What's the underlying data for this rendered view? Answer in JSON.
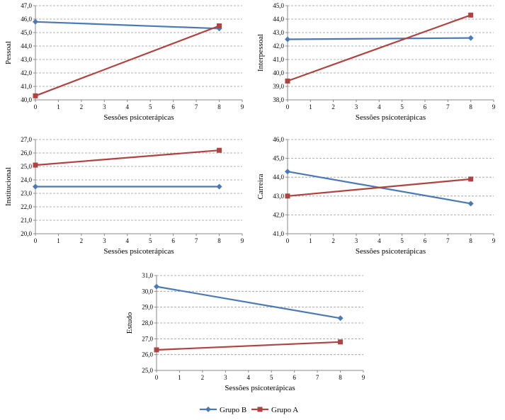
{
  "colors": {
    "grupo_b": "#4a7ab5",
    "grupo_a": "#b0433f",
    "grid": "#999999",
    "axis": "#888888"
  },
  "legend": [
    {
      "name": "Grupo B",
      "color": "#4a7ab5",
      "marker": "diamond"
    },
    {
      "name": "Grupo A",
      "color": "#b0433f",
      "marker": "square"
    }
  ],
  "chart_data": [
    {
      "type": "line",
      "ylabel": "Pessoal",
      "xlabel": "Sessões psicoterápicas",
      "xlim": [
        0,
        9
      ],
      "xticks": [
        "0",
        "1",
        "2",
        "3",
        "4",
        "5",
        "6",
        "7",
        "8",
        "9"
      ],
      "ylim": [
        40.0,
        47.0
      ],
      "yticks": [
        "40,0",
        "41,0",
        "42,0",
        "43,0",
        "44,0",
        "45,0",
        "46,0",
        "47,0"
      ],
      "grid": "horizontal dashed",
      "series": [
        {
          "name": "Grupo B",
          "x": [
            0,
            8
          ],
          "y": [
            45.8,
            45.3
          ]
        },
        {
          "name": "Grupo A",
          "x": [
            0,
            8
          ],
          "y": [
            40.3,
            45.5
          ]
        }
      ]
    },
    {
      "type": "line",
      "ylabel": "Interpessoal",
      "xlabel": "Sessões psicoterápicas",
      "xlim": [
        0,
        9
      ],
      "xticks": [
        "0",
        "1",
        "2",
        "3",
        "4",
        "5",
        "6",
        "7",
        "8",
        "9"
      ],
      "ylim": [
        38.0,
        45.0
      ],
      "yticks": [
        "38,0",
        "39,0",
        "40,0",
        "41,0",
        "42,0",
        "43,0",
        "44,0",
        "45,0"
      ],
      "grid": "horizontal dashed",
      "series": [
        {
          "name": "Grupo B",
          "x": [
            0,
            8
          ],
          "y": [
            42.5,
            42.6
          ]
        },
        {
          "name": "Grupo A",
          "x": [
            0,
            8
          ],
          "y": [
            39.4,
            44.3
          ]
        }
      ]
    },
    {
      "type": "line",
      "ylabel": "Institucional",
      "xlabel": "Sessões psicoterápicas",
      "xlim": [
        0,
        9
      ],
      "xticks": [
        "0",
        "1",
        "2",
        "3",
        "4",
        "5",
        "6",
        "7",
        "8",
        "9"
      ],
      "ylim": [
        20.0,
        27.0
      ],
      "yticks": [
        "20,0",
        "21,0",
        "22,0",
        "23,0",
        "24,0",
        "25,0",
        "26,0",
        "27,0"
      ],
      "grid": "horizontal dashed",
      "series": [
        {
          "name": "Grupo B",
          "x": [
            0,
            8
          ],
          "y": [
            23.5,
            23.5
          ]
        },
        {
          "name": "Grupo A",
          "x": [
            0,
            8
          ],
          "y": [
            25.1,
            26.2
          ]
        }
      ]
    },
    {
      "type": "line",
      "ylabel": "Carreira",
      "xlabel": "Sessões psicoterápicas",
      "xlim": [
        0,
        9
      ],
      "xticks": [
        "0",
        "1",
        "2",
        "3",
        "4",
        "5",
        "6",
        "7",
        "8",
        "9"
      ],
      "ylim": [
        41.0,
        46.0
      ],
      "yticks": [
        "41,0",
        "42,0",
        "43,0",
        "44,0",
        "45,0",
        "46,0"
      ],
      "grid": "horizontal dashed",
      "series": [
        {
          "name": "Grupo B",
          "x": [
            0,
            8
          ],
          "y": [
            44.3,
            42.6
          ]
        },
        {
          "name": "Grupo A",
          "x": [
            0,
            8
          ],
          "y": [
            43.0,
            43.9
          ]
        }
      ]
    },
    {
      "type": "line",
      "ylabel": "Estudo",
      "xlabel": "Sessões psicoterápicas",
      "xlim": [
        0,
        9
      ],
      "xticks": [
        "0",
        "1",
        "2",
        "3",
        "4",
        "5",
        "6",
        "7",
        "8",
        "9"
      ],
      "ylim": [
        25.0,
        31.0
      ],
      "yticks": [
        "25,0",
        "26,0",
        "27,0",
        "28,0",
        "29,0",
        "30,0",
        "31,0"
      ],
      "grid": "horizontal dashed",
      "series": [
        {
          "name": "Grupo B",
          "x": [
            0,
            8
          ],
          "y": [
            30.3,
            28.3
          ]
        },
        {
          "name": "Grupo A",
          "x": [
            0,
            8
          ],
          "y": [
            26.3,
            26.8
          ]
        }
      ]
    }
  ]
}
